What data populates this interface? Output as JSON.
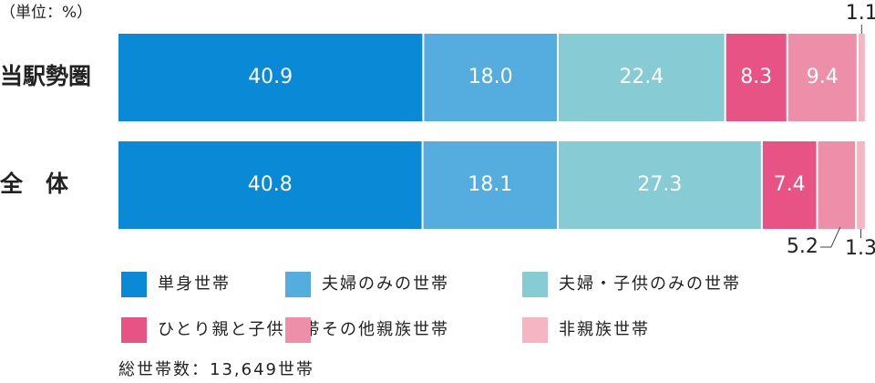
{
  "chart_data": {
    "type": "stacked-bar-horizontal",
    "unit_label": "（単位：%）",
    "note": "総世帯数：13,649世帯",
    "categories": [
      "当駅勢圏",
      "全　体"
    ],
    "xlim": [
      0,
      100
    ],
    "series": [
      {
        "name": "単身世帯",
        "color": "#0a8ad6",
        "values": [
          40.9,
          40.8
        ]
      },
      {
        "name": "夫婦のみの世帯",
        "color": "#55acdf",
        "values": [
          18,
          18.1
        ],
        "value_labels": [
          "18.0",
          "18.1"
        ]
      },
      {
        "name": "夫婦・子供のみの世帯",
        "color": "#87ccd4",
        "values": [
          22.4,
          27.3
        ]
      },
      {
        "name": "ひとり親と子供世帯",
        "color": "#e65384",
        "values": [
          8.3,
          7.4
        ]
      },
      {
        "name": "その他親族世帯",
        "color": "#ee8fa9",
        "values": [
          9.4,
          5.2
        ]
      },
      {
        "name": "非親族世帯",
        "color": "#f5b5c3",
        "values": [
          1.1,
          1.3
        ]
      }
    ]
  }
}
